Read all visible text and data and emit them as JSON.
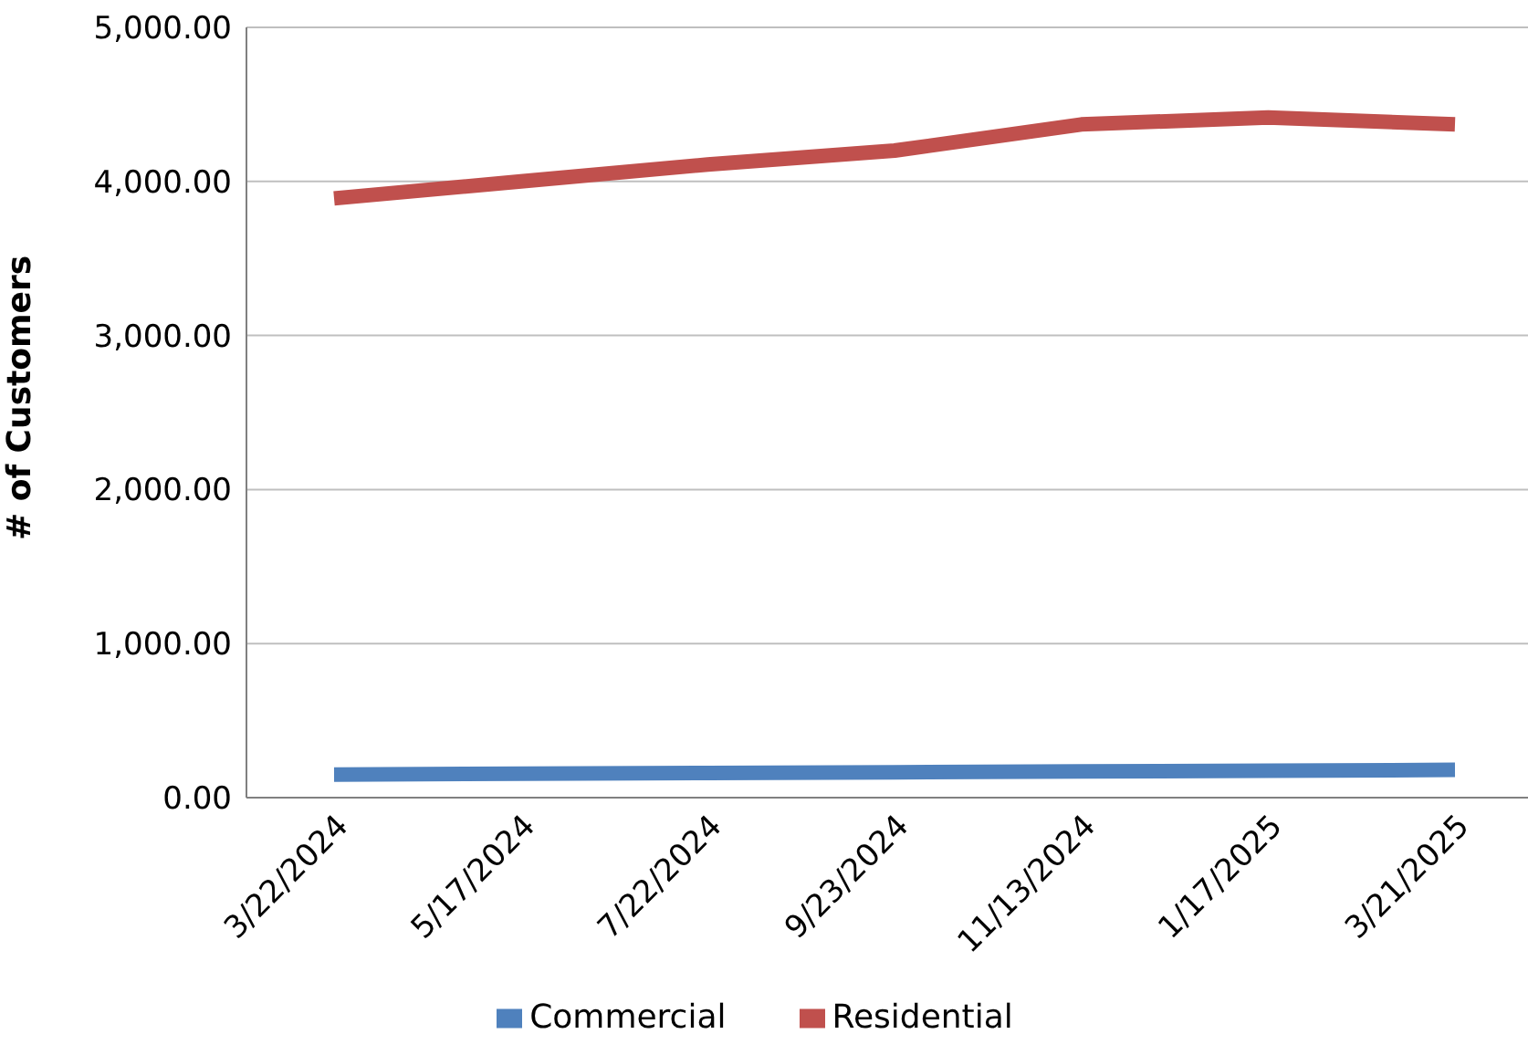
{
  "chart_data": {
    "type": "line",
    "ylabel": "# of Customers",
    "categories": [
      "3/22/2024",
      "5/17/2024",
      "7/22/2024",
      "9/23/2024",
      "11/13/2024",
      "1/17/2025",
      "3/21/2025"
    ],
    "series": [
      {
        "name": "Commercial",
        "color": "#4f81bd",
        "values": [
          150,
          155,
          160,
          165,
          170,
          175,
          180
        ]
      },
      {
        "name": "Residential",
        "color": "#c0504d",
        "values": [
          3890,
          4000,
          4110,
          4200,
          4370,
          4415,
          4370
        ]
      }
    ],
    "ylim": [
      0,
      5000
    ],
    "yticks": [
      {
        "value": 0,
        "label": "0.00"
      },
      {
        "value": 1000,
        "label": "1,000.00"
      },
      {
        "value": 2000,
        "label": "2,000.00"
      },
      {
        "value": 3000,
        "label": "3,000.00"
      },
      {
        "value": 4000,
        "label": "4,000.00"
      },
      {
        "value": 5000,
        "label": "5,000.00"
      }
    ],
    "grid": "y",
    "legend": "bottom",
    "marker": "none",
    "line_style": "solid"
  }
}
